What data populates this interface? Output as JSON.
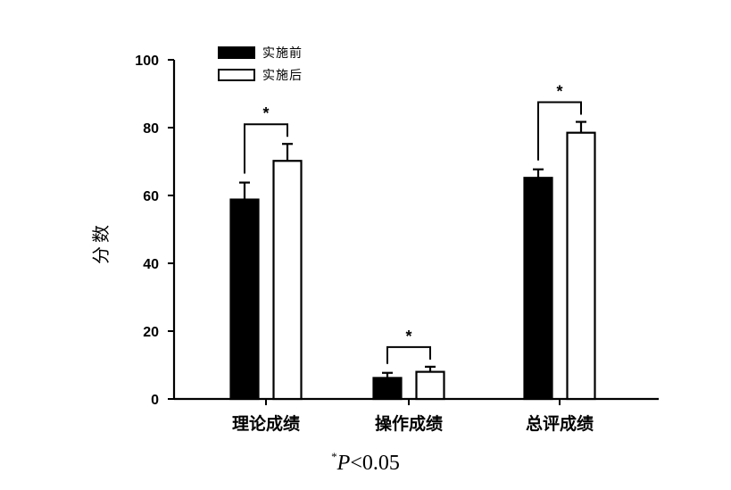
{
  "chart_data": {
    "type": "bar",
    "categories": [
      "理论成绩",
      "操作成绩",
      "总评成绩"
    ],
    "series": [
      {
        "name": "实施前",
        "values": [
          58.8,
          6.2,
          65.2
        ],
        "errors": [
          5.0,
          1.5,
          2.5
        ],
        "fill": "#000000"
      },
      {
        "name": "实施后",
        "values": [
          70.2,
          8.0,
          78.5
        ],
        "errors": [
          5.0,
          1.5,
          3.2
        ],
        "fill": "#ffffff"
      }
    ],
    "xlabel": "",
    "ylabel": "分数",
    "ylim": [
      0,
      100
    ],
    "yticks": [
      0,
      20,
      40,
      60,
      80,
      100
    ],
    "grid": false,
    "legend_position": "top-left",
    "significance": [
      {
        "category": "理论成绩",
        "marker": "*"
      },
      {
        "category": "操作成绩",
        "marker": "*"
      },
      {
        "category": "总评成绩",
        "marker": "*"
      }
    ]
  },
  "footnote": {
    "star": "*",
    "p": "P",
    "rest": "<0.05"
  }
}
